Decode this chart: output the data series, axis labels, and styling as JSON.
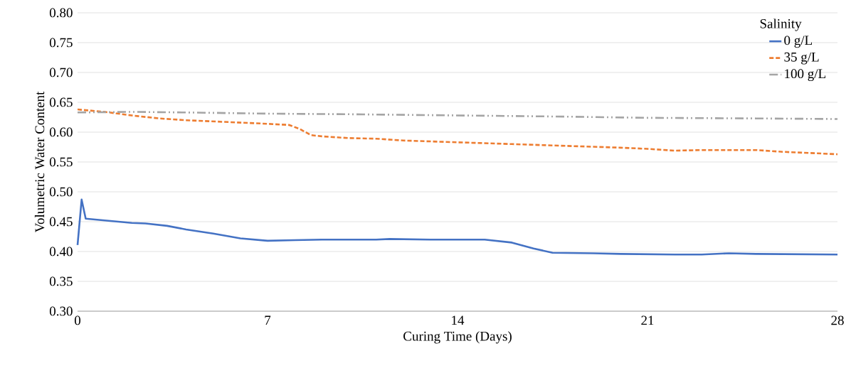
{
  "chart_data": {
    "type": "line",
    "xlabel": "Curing Time (Days)",
    "ylabel": "Volumetric Water Content",
    "legend_title": "Salinity",
    "xlim": [
      0,
      28
    ],
    "xticks": [
      0,
      7,
      14,
      21,
      28
    ],
    "ylim": [
      0.3,
      0.8
    ],
    "yticks": [
      {
        "value": 0.3,
        "label": "0.30"
      },
      {
        "value": 0.35,
        "label": "0.35"
      },
      {
        "value": 0.4,
        "label": "0.40"
      },
      {
        "value": 0.45,
        "label": "0.45"
      },
      {
        "value": 0.5,
        "label": "0.50"
      },
      {
        "value": 0.55,
        "label": "0.55"
      },
      {
        "value": 0.6,
        "label": "0.60"
      },
      {
        "value": 0.65,
        "label": "0.65"
      },
      {
        "value": 0.7,
        "label": "0.70"
      },
      {
        "value": 0.75,
        "label": "0.75"
      },
      {
        "value": 0.8,
        "label": "0.80"
      }
    ],
    "grid": "y",
    "legend": "top right",
    "marker": "none",
    "series": [
      {
        "name": "0 g/L",
        "color": "#4472c4",
        "line_style": "solid",
        "x": [
          0,
          0.15,
          0.3,
          1,
          2,
          2.5,
          3.3,
          4,
          5,
          6,
          7,
          8,
          9,
          11,
          11.5,
          13,
          15,
          16,
          16.8,
          17.5,
          19,
          20,
          22,
          23,
          24,
          25,
          28
        ],
        "values": [
          0.411,
          0.487,
          0.455,
          0.452,
          0.448,
          0.447,
          0.443,
          0.437,
          0.43,
          0.422,
          0.418,
          0.419,
          0.42,
          0.42,
          0.421,
          0.42,
          0.42,
          0.415,
          0.405,
          0.398,
          0.397,
          0.396,
          0.395,
          0.395,
          0.397,
          0.396,
          0.395
        ]
      },
      {
        "name": "35 g/L",
        "color": "#ed7d31",
        "line_style": "dashed",
        "x": [
          0,
          1,
          2,
          3,
          4,
          5.5,
          7,
          7.8,
          8.2,
          8.6,
          9,
          10,
          11,
          12,
          14,
          16,
          18,
          20,
          21,
          22,
          23,
          25,
          26,
          28
        ],
        "values": [
          0.638,
          0.634,
          0.628,
          0.623,
          0.62,
          0.617,
          0.614,
          0.612,
          0.605,
          0.595,
          0.593,
          0.59,
          0.589,
          0.586,
          0.583,
          0.58,
          0.577,
          0.574,
          0.572,
          0.569,
          0.57,
          0.57,
          0.567,
          0.563
        ]
      },
      {
        "name": "100 g/L",
        "color": "#a5a5a5",
        "line_style": "dotted",
        "x": [
          0,
          2,
          4,
          7,
          10,
          14,
          18,
          21,
          25,
          28
        ],
        "values": [
          0.633,
          0.634,
          0.633,
          0.631,
          0.63,
          0.628,
          0.626,
          0.624,
          0.623,
          0.622
        ]
      }
    ]
  }
}
